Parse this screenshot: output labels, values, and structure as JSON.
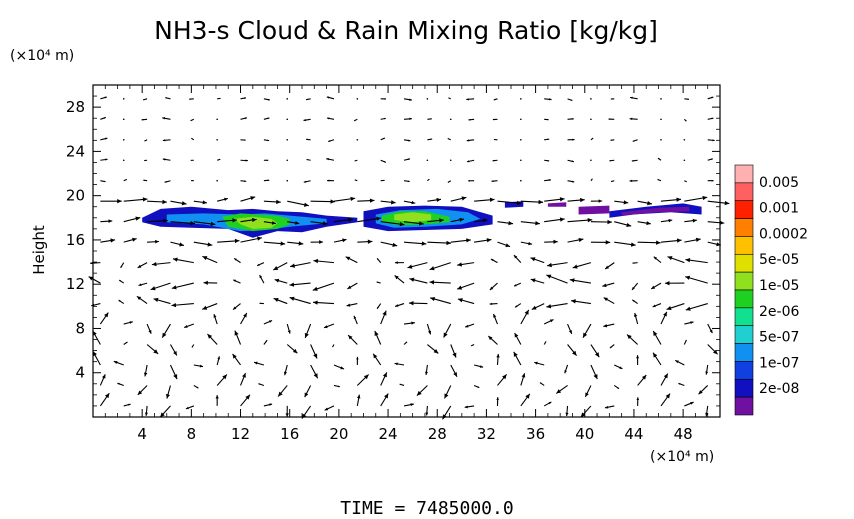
{
  "chart_data": {
    "type": "contour-vector",
    "title": "NH3-s Cloud & Rain Mixing Ratio [kg/kg]",
    "ylabel": "Height",
    "y_unit": "(×10⁴ m)",
    "x_unit": "(×10⁴ m)",
    "xlim": [
      0,
      51
    ],
    "ylim": [
      0,
      30
    ],
    "x_ticks": [
      "4",
      "8",
      "12",
      "16",
      "20",
      "24",
      "28",
      "32",
      "36",
      "40",
      "44",
      "48"
    ],
    "y_ticks": [
      "4",
      "8",
      "12",
      "16",
      "20",
      "24",
      "28"
    ],
    "colorbar": {
      "labels": [
        "0.005",
        "0.001",
        "0.0002",
        "5e-05",
        "1e-05",
        "2e-06",
        "5e-07",
        "1e-07",
        "2e-08"
      ],
      "colors": [
        "#ffb0b0",
        "#ff6060",
        "#ff2000",
        "#ff8000",
        "#ffc000",
        "#e0e000",
        "#90e020",
        "#20d020",
        "#10e090",
        "#20d0d0",
        "#1090f0",
        "#1040e0",
        "#1010c0",
        "#7010a0"
      ]
    },
    "cloud_regions": [
      {
        "x": [
          4.0,
          5.5,
          8,
          11,
          13,
          15,
          17,
          19,
          21.5,
          21.5,
          19,
          17,
          15,
          13,
          11,
          8,
          5.5,
          4.0
        ],
        "y": [
          18.0,
          18.8,
          19.0,
          18.7,
          18.8,
          18.6,
          18.5,
          18.2,
          18.0,
          17.6,
          17.2,
          16.7,
          16.8,
          16.2,
          17.0,
          17.1,
          17.2,
          17.6
        ],
        "level": 1
      },
      {
        "x": [
          6,
          9,
          12,
          14,
          16,
          19,
          19,
          16,
          14,
          12,
          9,
          6
        ],
        "y": [
          18.3,
          18.4,
          18.3,
          18.4,
          18.2,
          17.9,
          17.5,
          17.2,
          16.9,
          16.8,
          17.4,
          17.6
        ],
        "level": 3
      },
      {
        "x": [
          10.5,
          12,
          13.5,
          15,
          16,
          16,
          15,
          13,
          11
        ],
        "y": [
          18.1,
          18.4,
          18.3,
          18.2,
          17.9,
          17.4,
          17.0,
          16.8,
          17.2
        ],
        "level": 6
      },
      {
        "x": [
          11.5,
          13,
          14.5,
          15,
          14.5,
          13,
          12
        ],
        "y": [
          17.9,
          18.1,
          17.9,
          17.5,
          17.1,
          17.0,
          17.4
        ],
        "level": 7
      },
      {
        "x": [
          22,
          24,
          27,
          30,
          32.5,
          32.5,
          30,
          27,
          24,
          22
        ],
        "y": [
          18.6,
          19.0,
          19.1,
          19.0,
          18.2,
          17.4,
          17.0,
          16.9,
          16.8,
          17.2
        ],
        "level": 1
      },
      {
        "x": [
          23,
          25,
          28,
          30.5,
          31.5,
          30,
          27,
          24.5,
          23
        ],
        "y": [
          18.3,
          18.7,
          18.8,
          18.5,
          17.9,
          17.4,
          17.2,
          17.1,
          17.5
        ],
        "level": 3
      },
      {
        "x": [
          23.5,
          25,
          27,
          29,
          29,
          27,
          25,
          23.5
        ],
        "y": [
          18.2,
          18.6,
          18.6,
          18.1,
          17.6,
          17.4,
          17.3,
          17.6
        ],
        "level": 6
      },
      {
        "x": [
          24.5,
          26,
          27.5,
          27.5,
          26,
          24.5
        ],
        "y": [
          18.3,
          18.5,
          18.3,
          17.8,
          17.6,
          17.8
        ],
        "level": 7
      },
      {
        "x": [
          33.5,
          35,
          35,
          33.5
        ],
        "y": [
          19.4,
          19.5,
          19.0,
          18.9
        ],
        "level": 1
      },
      {
        "x": [
          37,
          38.5,
          38.5,
          37
        ],
        "y": [
          19.3,
          19.4,
          19.0,
          19.0
        ],
        "level": 0
      },
      {
        "x": [
          39.5,
          42,
          42,
          39.5
        ],
        "y": [
          19.0,
          19.1,
          18.4,
          18.3
        ],
        "level": 0
      },
      {
        "x": [
          42,
          45,
          48,
          49.5,
          49.5,
          47,
          44,
          42
        ],
        "y": [
          18.6,
          19.0,
          19.3,
          19.0,
          18.3,
          18.5,
          18.3,
          18.0
        ],
        "level": 1
      },
      {
        "x": [
          43,
          46,
          48.5,
          48.5,
          46,
          43
        ],
        "y": [
          18.5,
          18.9,
          19.0,
          18.6,
          18.5,
          18.2
        ],
        "level": 0
      }
    ]
  },
  "footer": {
    "time_label": "TIME  =  7485000.0"
  }
}
